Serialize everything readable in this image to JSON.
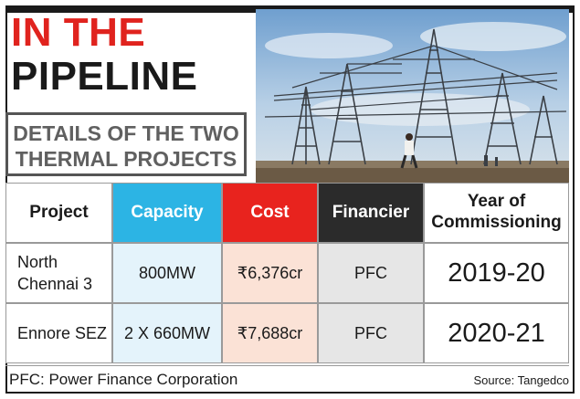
{
  "headline": {
    "line1": "IN THE",
    "line2": "PIPELINE"
  },
  "subheading": {
    "line1": "DETAILS OF THE TWO",
    "line2": "THERMAL PROJECTS"
  },
  "table": {
    "headers": [
      "Project",
      "Capacity",
      "Cost",
      "Financier",
      "Year of Commissioning"
    ],
    "header_colors": [
      "#ffffff",
      "#2cb4e4",
      "#e8231e",
      "#2b2b2b",
      "#ffffff"
    ],
    "header_text_colors": [
      "#1a1a1a",
      "#ffffff",
      "#ffffff",
      "#ffffff",
      "#1a1a1a"
    ],
    "column_bg": [
      "#ffffff",
      "#e4f3fb",
      "#fbe2d6",
      "#e6e6e6",
      "#ffffff"
    ],
    "rows": [
      {
        "project": "North Chennai 3",
        "capacity": "800MW",
        "cost": "₹6,376cr",
        "financier": "PFC",
        "year": "2019-20"
      },
      {
        "project": "Ennore SEZ",
        "capacity": "2 X 660MW",
        "cost": "₹7,688cr",
        "financier": "PFC",
        "year": "2020-21"
      }
    ]
  },
  "footnote": "PFC: Power Finance Corporation",
  "source": "Source: Tangedco",
  "photo": {
    "subject": "electricity transmission towers with a worker walking"
  }
}
